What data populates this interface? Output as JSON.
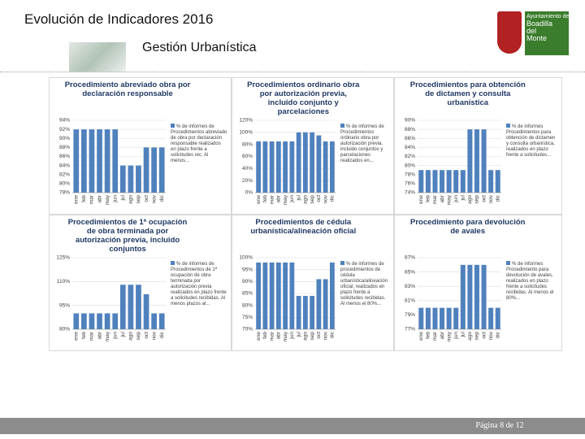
{
  "header": {
    "title": "Evolución de Indicadores 2016",
    "subtitle": "Gestión Urbanística",
    "logo": [
      "Ayuntamiento de",
      "Boadilla",
      "del",
      "Monte"
    ]
  },
  "footer": {
    "page": "Página 8 de 12"
  },
  "chart_data": [
    {
      "type": "bar",
      "title": "Procedimiento abreviado obra por declaración responsable",
      "categories": [
        "ene",
        "feb",
        "mar",
        "abr",
        "may",
        "jun",
        "jul",
        "ago",
        "sep",
        "oct",
        "nov",
        "dic"
      ],
      "series": [
        {
          "name": "% de informes de Procedimientos abreviado de obra por declaración responsable realizados en plazo frente a solicitudes rec. Al menos...",
          "color": "#4f81bd",
          "values": [
            92,
            92,
            92,
            92,
            92,
            92,
            84,
            84,
            84,
            88,
            88,
            88
          ]
        }
      ],
      "ylim": [
        78,
        94
      ],
      "yticks": [
        {
          "value": 78,
          "label": "78%"
        },
        {
          "value": 80,
          "label": "80%"
        },
        {
          "value": 82,
          "label": "82%"
        },
        {
          "value": 84,
          "label": "84%"
        },
        {
          "value": 86,
          "label": "86%"
        },
        {
          "value": 88,
          "label": "88%"
        },
        {
          "value": 90,
          "label": "90%"
        },
        {
          "value": 92,
          "label": "92%"
        },
        {
          "value": 94,
          "label": "94%"
        }
      ],
      "grid": true
    },
    {
      "type": "bar",
      "title": "Procedimientos ordinario obra por autorización previa, incluido conjunto y parcelaciones",
      "categories": [
        "ene",
        "feb",
        "mar",
        "abr",
        "may",
        "jun",
        "jul",
        "ago",
        "sep",
        "oct",
        "nov",
        "dic"
      ],
      "series": [
        {
          "name": "% de informes de Procedimientos ordinario obra por autorización previa, incluido conjuntos y parcelaciones realizados en...",
          "color": "#4f81bd",
          "values": [
            85,
            85,
            85,
            85,
            85,
            85,
            100,
            100,
            100,
            95,
            85,
            85
          ]
        }
      ],
      "ylim": [
        0,
        120
      ],
      "yticks": [
        {
          "value": 0,
          "label": "0%"
        },
        {
          "value": 20,
          "label": "20%"
        },
        {
          "value": 40,
          "label": "40%"
        },
        {
          "value": 60,
          "label": "60%"
        },
        {
          "value": 80,
          "label": "80%"
        },
        {
          "value": 100,
          "label": "100%"
        },
        {
          "value": 120,
          "label": "120%"
        }
      ],
      "grid": true
    },
    {
      "type": "bar",
      "title": "Procedimientos para obtención de dictamen y consulta urbanística",
      "categories": [
        "ene",
        "feb",
        "mar",
        "abr",
        "may",
        "jun",
        "jul",
        "ago",
        "sep",
        "oct",
        "nov",
        "dic"
      ],
      "series": [
        {
          "name": "% de informes Procedimientos para obtención de dictamen y consulta urbanística, realizados en plazo frente a solicitudes...",
          "color": "#4f81bd",
          "values": [
            79,
            79,
            79,
            79,
            79,
            79,
            79,
            88,
            88,
            88,
            79,
            79
          ]
        }
      ],
      "ylim": [
        74,
        90
      ],
      "yticks": [
        {
          "value": 74,
          "label": "74%"
        },
        {
          "value": 76,
          "label": "76%"
        },
        {
          "value": 78,
          "label": "78%"
        },
        {
          "value": 80,
          "label": "80%"
        },
        {
          "value": 82,
          "label": "82%"
        },
        {
          "value": 84,
          "label": "84%"
        },
        {
          "value": 86,
          "label": "86%"
        },
        {
          "value": 88,
          "label": "88%"
        },
        {
          "value": 90,
          "label": "90%"
        }
      ],
      "grid": true
    },
    {
      "type": "bar",
      "title": "Procedimientos de 1ª ocupación de obra terminada por autorización previa, incluido conjuntos",
      "categories": [
        "ene",
        "feb",
        "mar",
        "abr",
        "may",
        "jun",
        "jul",
        "ago",
        "sep",
        "oct",
        "nov",
        "dic"
      ],
      "series": [
        {
          "name": "% de informes de Procedimientos de 1ª ocupación de obra terminada por autorización previa realizados en plazo frente a solicitudes recibidas. Al menos plazos al...",
          "color": "#4f81bd",
          "values": [
            90,
            90,
            90,
            90,
            90,
            90,
            108,
            108,
            108,
            102,
            90,
            90
          ]
        }
      ],
      "ylim": [
        80,
        125
      ],
      "yticks": [
        {
          "value": 80,
          "label": "80%"
        },
        {
          "value": 95,
          "label": "95%"
        },
        {
          "value": 110,
          "label": "110%"
        },
        {
          "value": 125,
          "label": "125%"
        }
      ],
      "grid": true
    },
    {
      "type": "bar",
      "title": "Procedimientos de cédula urbanística/alineación oficial",
      "categories": [
        "ene",
        "feb",
        "mar",
        "abr",
        "may",
        "jun",
        "jul",
        "ago",
        "sep",
        "oct",
        "nov",
        "dic"
      ],
      "series": [
        {
          "name": "% de informes de procedimientos de cédula urbanística/alineación oficial, realizados en plazo frente a solicitudes recibidas. Al menos el 80%...",
          "color": "#4f81bd",
          "values": [
            98,
            98,
            98,
            98,
            98,
            98,
            84,
            84,
            84,
            91,
            91,
            98
          ]
        }
      ],
      "ylim": [
        70,
        100
      ],
      "yticks": [
        {
          "value": 70,
          "label": "70%"
        },
        {
          "value": 75,
          "label": "75%"
        },
        {
          "value": 80,
          "label": "80%"
        },
        {
          "value": 85,
          "label": "85%"
        },
        {
          "value": 90,
          "label": "90%"
        },
        {
          "value": 95,
          "label": "95%"
        },
        {
          "value": 100,
          "label": "100%"
        }
      ],
      "grid": true
    },
    {
      "type": "bar",
      "title": "Procedimiento para devolución de avales",
      "categories": [
        "ene",
        "feb",
        "mar",
        "abr",
        "may",
        "jun",
        "jul",
        "ago",
        "sep",
        "oct",
        "nov",
        "dic"
      ],
      "series": [
        {
          "name": "% de informes Procedimiento para devolución de avales, realizados en plazo frente a solicitudes recibidas. Al menos el 80%...",
          "color": "#4f81bd",
          "values": [
            80,
            80,
            80,
            80,
            80,
            80,
            86,
            86,
            86,
            86,
            80,
            80
          ]
        }
      ],
      "ylim": [
        77,
        87
      ],
      "yticks": [
        {
          "value": 77,
          "label": "77%"
        },
        {
          "value": 79,
          "label": "79%"
        },
        {
          "value": 81,
          "label": "81%"
        },
        {
          "value": 83,
          "label": "83%"
        },
        {
          "value": 85,
          "label": "85%"
        },
        {
          "value": 87,
          "label": "87%"
        }
      ],
      "grid": true
    }
  ]
}
